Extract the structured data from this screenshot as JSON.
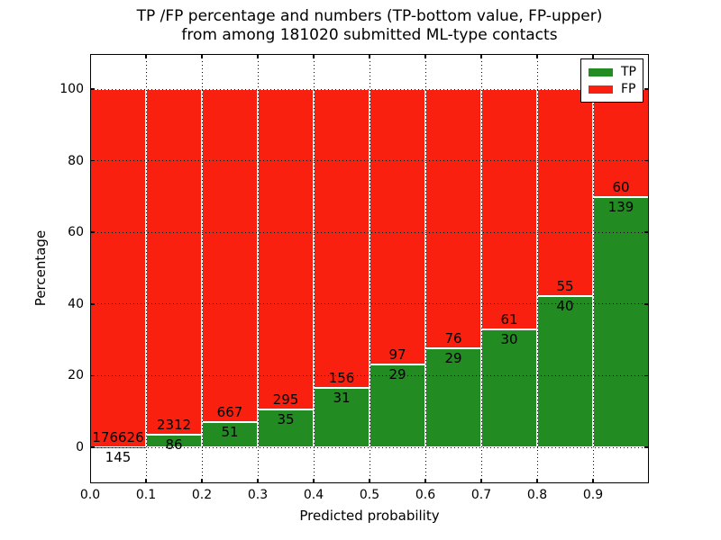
{
  "title": {
    "line1": "TP /FP percentage and numbers (TP-bottom value, FP-upper)",
    "line2": "from among 181020 submitted ML-type contacts"
  },
  "axes": {
    "xlabel": "Predicted probability",
    "ylabel": "Percentage",
    "xtick_labels": [
      "0.0",
      "0.1",
      "0.2",
      "0.3",
      "0.4",
      "0.5",
      "0.6",
      "0.7",
      "0.8",
      "0.9"
    ],
    "ytick_labels": [
      "0",
      "20",
      "40",
      "60",
      "80",
      "100"
    ],
    "ytick_values": [
      0,
      20,
      40,
      60,
      80,
      100
    ],
    "xlim": [
      0.0,
      1.0
    ],
    "ylim": [
      -10,
      110
    ],
    "grid_style": "dotted"
  },
  "legend": {
    "position": "upper right",
    "items": [
      {
        "label": "TP",
        "color": "#228b22"
      },
      {
        "label": "FP",
        "color": "#f92010"
      }
    ]
  },
  "colors": {
    "tp": "#228b22",
    "fp": "#f92010",
    "bar_edge": "#ffffff",
    "grid": "#000000"
  },
  "chart_data": {
    "type": "bar",
    "stacked": true,
    "normalized": "each bar totals 100%",
    "title": "TP /FP percentage and numbers (TP-bottom value, FP-upper) from among 181020 submitted ML-type contacts",
    "xlabel": "Predicted probability",
    "ylabel": "Percentage",
    "bin_edges": [
      0.0,
      0.1,
      0.2,
      0.3,
      0.4,
      0.5,
      0.6,
      0.7,
      0.8,
      0.9,
      1.0
    ],
    "categories": [
      "0.0-0.1",
      "0.1-0.2",
      "0.2-0.3",
      "0.3-0.4",
      "0.4-0.5",
      "0.5-0.6",
      "0.6-0.7",
      "0.7-0.8",
      "0.8-0.9",
      "0.9-1.0"
    ],
    "series": [
      {
        "name": "TP",
        "color": "#228b22",
        "counts": [
          145,
          86,
          51,
          35,
          31,
          29,
          29,
          30,
          40,
          139
        ],
        "percent": [
          0.08,
          3.59,
          7.1,
          10.61,
          16.58,
          23.02,
          27.62,
          32.97,
          42.11,
          69.85
        ]
      },
      {
        "name": "FP",
        "color": "#f92010",
        "counts": [
          176626,
          2312,
          667,
          295,
          156,
          97,
          76,
          61,
          55,
          60
        ],
        "percent": [
          99.92,
          96.41,
          92.9,
          89.39,
          83.42,
          76.98,
          72.38,
          67.03,
          57.89,
          30.15
        ]
      }
    ],
    "total_submitted_contacts": 181020,
    "ylim": [
      -10,
      110
    ],
    "legend_position": "upper right",
    "grid": true
  }
}
